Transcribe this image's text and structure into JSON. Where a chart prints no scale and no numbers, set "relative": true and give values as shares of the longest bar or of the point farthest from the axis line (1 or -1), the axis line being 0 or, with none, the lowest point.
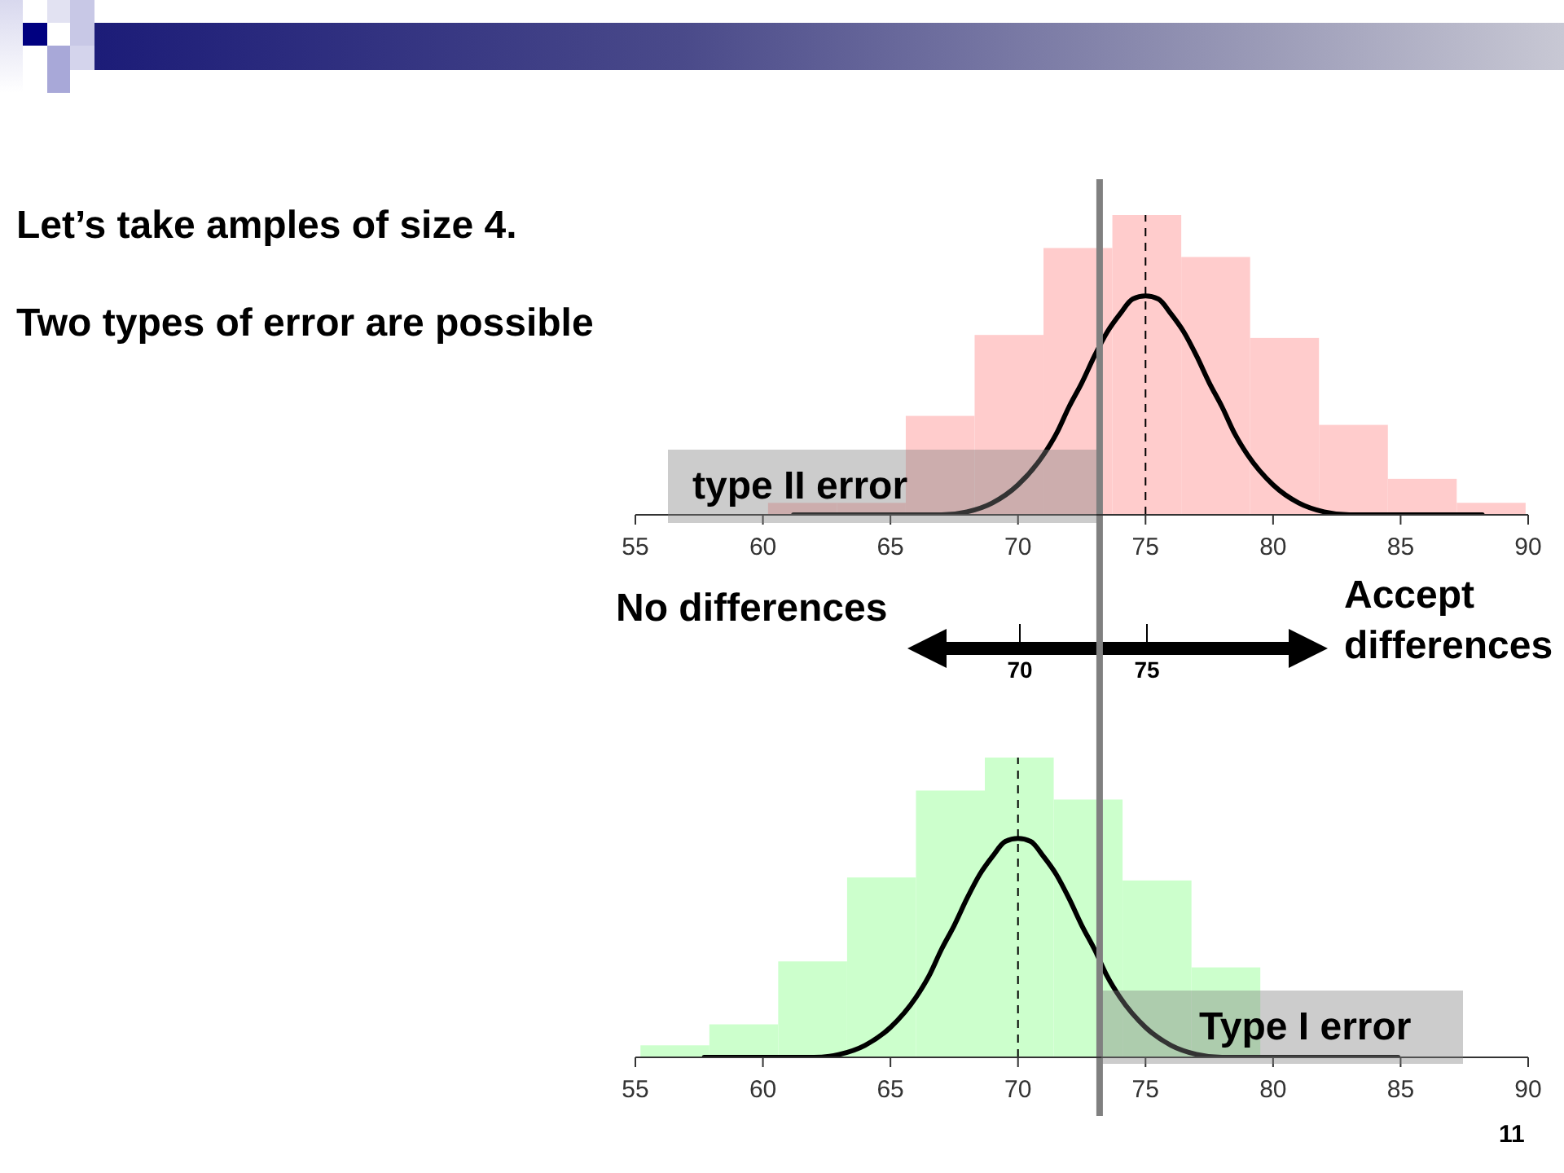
{
  "chart_data": [
    {
      "type": "histogram",
      "title": "Let’s take amples of size 4.",
      "subtitle": "Two types of error are possible",
      "relative": true,
      "bins": [
        60.2,
        62.9,
        65.6,
        68.3,
        71,
        73.7,
        76.4,
        79.1,
        81.8,
        84.5,
        87.2,
        89.9
      ],
      "values": [
        0.04,
        0.04,
        0.33,
        0.6,
        0.89,
        1,
        0.86,
        0.59,
        0.3,
        0.12,
        0.04
      ],
      "color": "#ffcccc",
      "series": [
        {
          "type": "line",
          "color": "#000000",
          "x": [
            61.2,
            67,
            68,
            69,
            70,
            71,
            71.5,
            72,
            72.5,
            73,
            73.5,
            74,
            74.5,
            75,
            75.5,
            76,
            76.5,
            77,
            77.5,
            78,
            78.5,
            79,
            80,
            81,
            82,
            83,
            88.2
          ],
          "values": [
            0,
            0,
            0.01,
            0.04,
            0.1,
            0.2,
            0.27,
            0.36,
            0.44,
            0.53,
            0.61,
            0.67,
            0.72,
            0.73,
            0.72,
            0.67,
            0.61,
            0.53,
            0.44,
            0.36,
            0.27,
            0.2,
            0.1,
            0.04,
            0.01,
            0,
            0
          ]
        }
      ],
      "xlim": [
        55,
        90
      ],
      "xticks": [
        55,
        60,
        65,
        70,
        75,
        80,
        85,
        90
      ],
      "tick_labels": "x",
      "ref_lines": [
        {
          "axis": "x",
          "value": 75,
          "color": "#000000",
          "line_style": "dashed"
        },
        {
          "axis": "x",
          "value": 73.2,
          "color": "#808080",
          "line_style": "solid"
        }
      ],
      "annotations": [
        "type II error"
      ]
    },
    {
      "type": "other",
      "annotations": [
        "No differences",
        "Accept differences",
        "70",
        "75"
      ]
    },
    {
      "type": "histogram",
      "relative": true,
      "bins": [
        55.2,
        57.9,
        60.6,
        63.3,
        66,
        68.7,
        71.4,
        74.1,
        76.8,
        79.5
      ],
      "values": [
        0.04,
        0.11,
        0.32,
        0.6,
        0.89,
        1,
        0.86,
        0.59,
        0.3
      ],
      "color": "#ccffcc",
      "series": [
        {
          "type": "line",
          "color": "#000000",
          "x": [
            57.7,
            62,
            63,
            64,
            65,
            66,
            66.5,
            67,
            67.5,
            68,
            68.5,
            69,
            69.5,
            70,
            70.5,
            71,
            71.5,
            72,
            72.5,
            73,
            73.5,
            74,
            75,
            76,
            77,
            78,
            84.9
          ],
          "values": [
            0,
            0,
            0.01,
            0.04,
            0.1,
            0.2,
            0.27,
            0.36,
            0.44,
            0.53,
            0.61,
            0.67,
            0.72,
            0.73,
            0.72,
            0.67,
            0.61,
            0.53,
            0.44,
            0.36,
            0.27,
            0.2,
            0.1,
            0.04,
            0.01,
            0,
            0
          ]
        }
      ],
      "xlim": [
        55,
        90
      ],
      "xticks": [
        55,
        60,
        65,
        70,
        75,
        80,
        85,
        90
      ],
      "tick_labels": "x",
      "ref_lines": [
        {
          "axis": "x",
          "value": 70,
          "color": "#000000",
          "line_style": "dashed"
        },
        {
          "axis": "x",
          "value": 73.2,
          "color": "#808080",
          "line_style": "solid"
        }
      ],
      "annotations": [
        "Type I error",
        "11"
      ]
    }
  ]
}
